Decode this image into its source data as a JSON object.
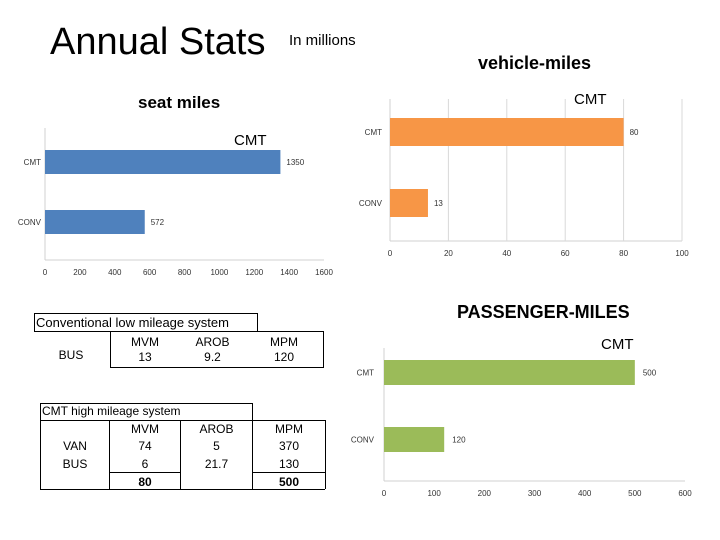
{
  "header": {
    "title": "Annual Stats",
    "subtitle": "In millions"
  },
  "chart_data": [
    {
      "type": "bar",
      "orientation": "horizontal",
      "title": "seat miles",
      "annotation": "CMT",
      "categories": [
        "CMT",
        "CONV"
      ],
      "values": [
        1350,
        572
      ],
      "xlim": [
        0,
        1600
      ],
      "xticks": [
        "0",
        "200",
        "400",
        "600",
        "800",
        "1000",
        "1200",
        "1400",
        "1600"
      ],
      "color": "#4f81bd",
      "grid": false
    },
    {
      "type": "bar",
      "orientation": "horizontal",
      "title": "vehicle-miles",
      "annotation": "CMT",
      "categories": [
        "CMT",
        "CONV"
      ],
      "values": [
        80,
        13
      ],
      "xlim": [
        0,
        100
      ],
      "xticks": [
        "0",
        "20",
        "40",
        "60",
        "80",
        "100"
      ],
      "color": "#f79646",
      "grid": true
    },
    {
      "type": "bar",
      "orientation": "horizontal",
      "title": "PASSENGER-MILES",
      "annotation": "CMT",
      "categories": [
        "CMT",
        "CONV"
      ],
      "values": [
        500,
        120
      ],
      "xlim": [
        0,
        600
      ],
      "xticks": [
        "0",
        "100",
        "200",
        "300",
        "400",
        "500",
        "600"
      ],
      "color": "#9bbb59",
      "grid": false
    }
  ],
  "tables": {
    "conventional": {
      "title": "Conventional low mileage system",
      "row": "BUS",
      "headers": [
        "MVM",
        "AROB",
        "MPM"
      ],
      "values": [
        "13",
        "9.2",
        "120"
      ]
    },
    "cmt": {
      "title": "CMT high mileage system",
      "headers": [
        "MVM",
        "AROB",
        "MPM"
      ],
      "rows": [
        {
          "label": "VAN",
          "values": [
            "74",
            "5",
            "370"
          ]
        },
        {
          "label": "BUS",
          "values": [
            "6",
            "21.7",
            "130"
          ]
        },
        {
          "label": "",
          "values": [
            "80",
            "",
            "500"
          ]
        }
      ]
    }
  }
}
